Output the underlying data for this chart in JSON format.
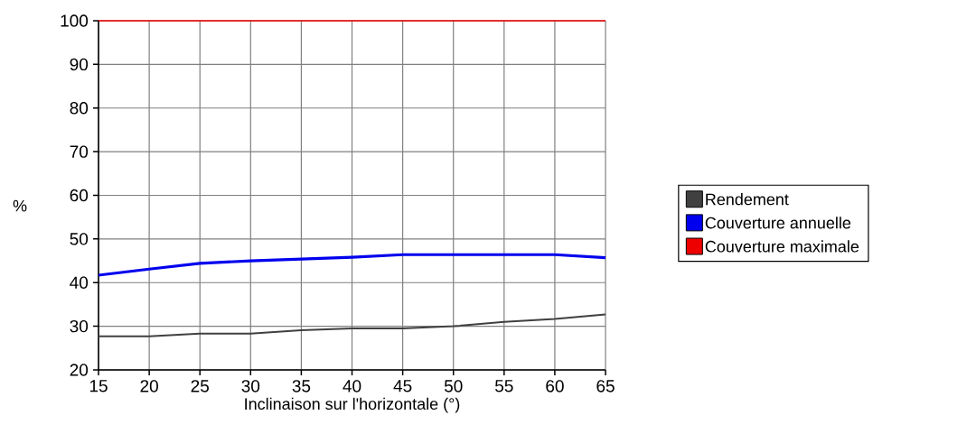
{
  "chart_data": {
    "type": "line",
    "xlabel": "Inclinaison sur l'horizontale (°)",
    "ylabel": "%",
    "x": [
      15,
      20,
      25,
      30,
      35,
      40,
      45,
      50,
      55,
      60,
      65
    ],
    "series": [
      {
        "name": "Rendement",
        "color": "#404040",
        "values": [
          27.7,
          27.7,
          28.3,
          28.3,
          29.1,
          29.5,
          29.5,
          30,
          31,
          31.7,
          32.7
        ]
      },
      {
        "name": "Couverture annuelle",
        "color": "#0000ee",
        "values": [
          41.7,
          43.1,
          44.4,
          45,
          45.4,
          45.8,
          46.4,
          46.4,
          46.4,
          46.4,
          45.7
        ]
      },
      {
        "name": "Couverture maximale",
        "color": "#ee0000",
        "values": [
          100,
          100,
          100,
          100,
          100,
          100,
          100,
          100,
          100,
          100,
          100
        ]
      }
    ],
    "xlim": [
      15,
      65
    ],
    "ylim": [
      20,
      100
    ],
    "xticks": [
      15,
      20,
      25,
      30,
      35,
      40,
      45,
      50,
      55,
      60,
      65
    ],
    "yticks": [
      20,
      30,
      40,
      50,
      60,
      70,
      80,
      90,
      100
    ],
    "grid": true,
    "legend": "right",
    "marker": "none",
    "line_style": "solid"
  }
}
